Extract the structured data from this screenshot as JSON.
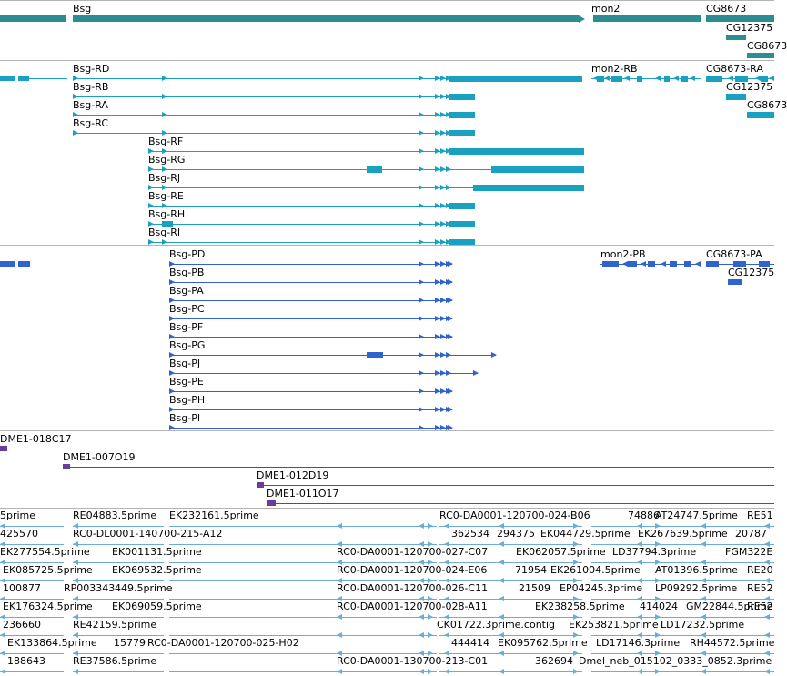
{
  "colors": {
    "gene": "#2a8e92",
    "transcript": "#1aa0c0",
    "protein": "#2f63cf",
    "clone": "#6a3d9a",
    "est": "#6aaed6",
    "separator": "#b4b4b4"
  },
  "tracks": {
    "genes": {
      "labels": [
        "Bsg",
        "mon2",
        "CG8673",
        "CG12375",
        "CG8673"
      ]
    },
    "transcripts": {
      "labels": [
        "Bsg-RD",
        "Bsg-RB",
        "Bsg-RA",
        "Bsg-RC",
        "Bsg-RF",
        "Bsg-RG",
        "Bsg-RJ",
        "Bsg-RE",
        "Bsg-RH",
        "Bsg-RI",
        "mon2-RB",
        "CG8673-RA",
        "CG12375",
        "CG8673"
      ]
    },
    "proteins": {
      "labels": [
        "Bsg-PD",
        "Bsg-PB",
        "Bsg-PA",
        "Bsg-PC",
        "Bsg-PF",
        "Bsg-PG",
        "Bsg-PJ",
        "Bsg-PE",
        "Bsg-PH",
        "Bsg-PI",
        "mon2-PB",
        "CG8673-PA",
        "CG12375"
      ]
    },
    "clones": {
      "labels": [
        "DME1-018C17",
        "DME1-007O19",
        "DME1-012D19",
        "DME1-011O17"
      ]
    },
    "ests": {
      "labels": [
        "5prime",
        "RE04883.5prime",
        "EK232161.5prime",
        "RC0-DA0001-120700-024-B06",
        "74886",
        "AT24747.5prime",
        "RE51",
        "425570",
        "RC0-DL0001-140700-215-A12",
        "362534",
        "294375",
        "EK044729.5prime",
        "EK267639.5prime",
        "20787",
        "EK277554.5prime",
        "EK001131.5prime",
        "RC0-DA0001-120700-027-C07",
        "EK062057.5prime",
        "LD37794.3prime",
        "FGM322E",
        "EK085725.5prime",
        "EK069532.5prime",
        "RC0-DA0001-120700-024-E06",
        "71954",
        "EK261004.5prime",
        "AT01396.5prime",
        "RE20",
        "100877",
        "RP003343",
        "449.5prime",
        "RC0-DA0001-120700-026-C11",
        "21509",
        "EP04245.3prime",
        "LP09292.5prime",
        "RE52",
        "EK176324.5prime",
        "EK069059.5prime",
        "RC0-DA0001-120700-028-A11",
        "EK238258.5prime",
        "414024",
        "GM22844.5prime",
        "RE52",
        "236660",
        "RE42159.5prime",
        "CK01722.3prime.contig",
        "EK253821.5prime",
        "LD17232.5prime",
        "EK133864.5prime",
        "15779",
        "RC0-DA0001-120700-025-H02",
        "444414",
        "EK095762.5prime",
        "LD17146.3prime",
        "RH44572.5prime",
        "188643",
        "RE37586.5prime",
        "RC0-DA0001-130700-213-C01",
        "362694",
        "Dmel_neb_015102_0333_0852.3prime"
      ]
    }
  }
}
